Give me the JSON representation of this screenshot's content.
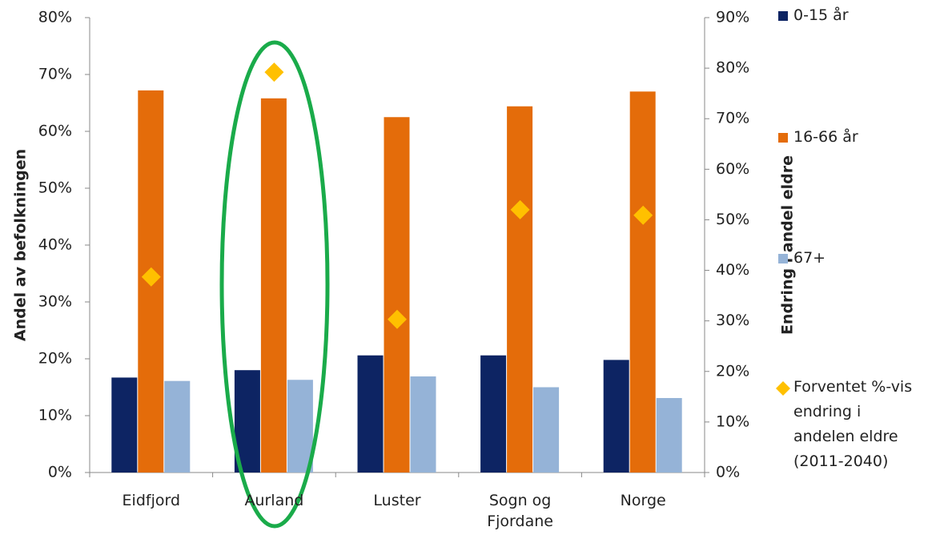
{
  "chart_data": {
    "type": "bar",
    "y_axis_label": "Andel av befolkningen",
    "y2_axis_label": "Endring i andel eldre",
    "categories": [
      "Eidfjord",
      "Aurland",
      "Luster",
      "Sogn og Fjordane",
      "Norge"
    ],
    "series": [
      {
        "name": "0-15 år",
        "color": "#0d2463",
        "values": [
          16.7,
          18.0,
          20.6,
          20.6,
          19.8
        ]
      },
      {
        "name": "16-66 år",
        "color": "#e46c0a",
        "values": [
          67.2,
          65.8,
          62.5,
          64.4,
          67.0
        ]
      },
      {
        "name": "67+",
        "color": "#95b3d7",
        "values": [
          16.1,
          16.3,
          16.9,
          15.0,
          13.1
        ]
      },
      {
        "name": "Forventet %-vis endring i andelen eldre (2011-2040)",
        "type": "diamond",
        "axis": "y2",
        "color": "#ffc000",
        "values": [
          38.7,
          79.2,
          30.3,
          52.0,
          50.9
        ]
      }
    ],
    "ylim": [
      0,
      80
    ],
    "yticks": [
      {
        "value": 0,
        "label": "0%"
      },
      {
        "value": 10,
        "label": "10%"
      },
      {
        "value": 20,
        "label": "20%"
      },
      {
        "value": 30,
        "label": "30%"
      },
      {
        "value": 40,
        "label": "40%"
      },
      {
        "value": 50,
        "label": "50%"
      },
      {
        "value": 60,
        "label": "60%"
      },
      {
        "value": 70,
        "label": "70%"
      },
      {
        "value": 80,
        "label": "80%"
      }
    ],
    "y2lim": [
      0,
      90
    ],
    "y2ticks": [
      {
        "value": 0,
        "label": "0%"
      },
      {
        "value": 10,
        "label": "10%"
      },
      {
        "value": 20,
        "label": "20%"
      },
      {
        "value": 30,
        "label": "30%"
      },
      {
        "value": 40,
        "label": "40%"
      },
      {
        "value": 50,
        "label": "50%"
      },
      {
        "value": 60,
        "label": "60%"
      },
      {
        "value": 70,
        "label": "70%"
      },
      {
        "value": 80,
        "label": "80%"
      },
      {
        "value": 90,
        "label": "90%"
      }
    ],
    "legend": "right"
  }
}
